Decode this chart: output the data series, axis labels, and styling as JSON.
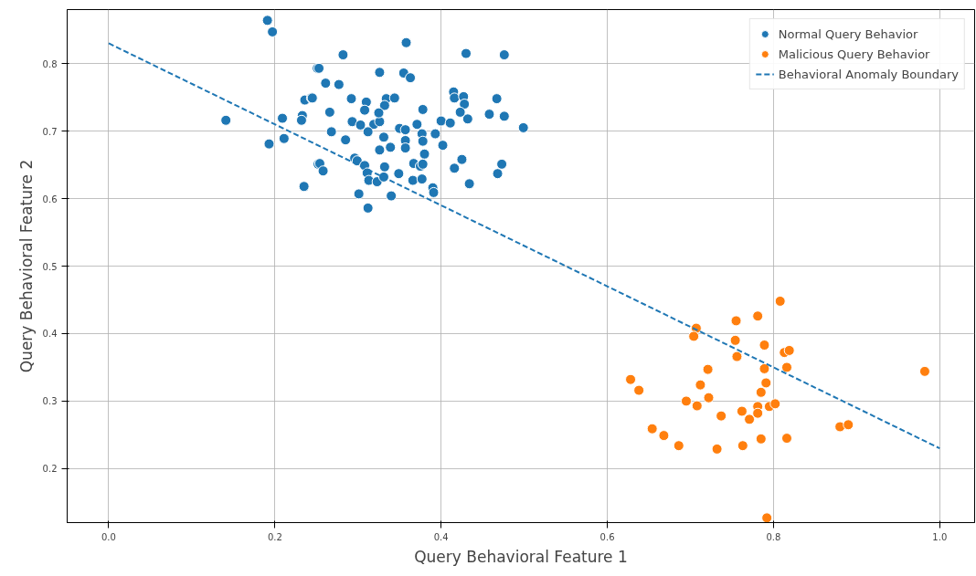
{
  "chart_data": {
    "type": "scatter",
    "xlabel": "Query Behavioral Feature 1",
    "ylabel": "Query Behavioral Feature 2",
    "xlim": [
      -0.05,
      1.042
    ],
    "ylim": [
      0.12,
      0.88
    ],
    "xticks": [
      {
        "value": 0,
        "label": "0.0"
      },
      0.2,
      0.4,
      0.6,
      0.8,
      {
        "value": 1,
        "label": "1.0"
      }
    ],
    "yticks": [
      0.2,
      0.3,
      0.4,
      0.5,
      0.6,
      0.7,
      0.8
    ],
    "grid": true,
    "legend": "top right",
    "series": [
      {
        "name": "Normal Query Behavior",
        "marker": "circle",
        "color": "#1f77b4",
        "x": [
          0.191,
          0.197,
          0.251,
          0.236,
          0.244,
          0.233,
          0.232,
          0.209,
          0.141,
          0.211,
          0.193,
          0.252,
          0.235,
          0.358,
          0.282,
          0.43,
          0.476,
          0.253,
          0.326,
          0.355,
          0.363,
          0.261,
          0.277,
          0.245,
          0.292,
          0.31,
          0.334,
          0.344,
          0.415,
          0.416,
          0.427,
          0.428,
          0.467,
          0.266,
          0.332,
          0.308,
          0.378,
          0.423,
          0.432,
          0.458,
          0.476,
          0.293,
          0.303,
          0.319,
          0.326,
          0.325,
          0.371,
          0.4,
          0.411,
          0.268,
          0.285,
          0.312,
          0.331,
          0.35,
          0.357,
          0.377,
          0.378,
          0.393,
          0.357,
          0.402,
          0.326,
          0.339,
          0.357,
          0.38,
          0.254,
          0.258,
          0.296,
          0.299,
          0.308,
          0.332,
          0.367,
          0.375,
          0.378,
          0.425,
          0.416,
          0.473,
          0.468,
          0.311,
          0.313,
          0.323,
          0.331,
          0.349,
          0.366,
          0.377,
          0.39,
          0.391,
          0.434,
          0.301,
          0.34,
          0.312,
          0.499
        ],
        "values": [
          0.864,
          0.847,
          0.793,
          0.746,
          0.749,
          0.723,
          0.716,
          0.719,
          0.716,
          0.689,
          0.681,
          0.651,
          0.618,
          0.831,
          0.813,
          0.815,
          0.813,
          0.793,
          0.787,
          0.786,
          0.779,
          0.771,
          0.769,
          0.749,
          0.748,
          0.743,
          0.748,
          0.749,
          0.758,
          0.749,
          0.751,
          0.74,
          0.748,
          0.728,
          0.738,
          0.731,
          0.732,
          0.728,
          0.718,
          0.725,
          0.722,
          0.714,
          0.709,
          0.71,
          0.714,
          0.727,
          0.71,
          0.715,
          0.712,
          0.699,
          0.687,
          0.699,
          0.691,
          0.704,
          0.702,
          0.696,
          0.685,
          0.696,
          0.686,
          0.679,
          0.672,
          0.676,
          0.675,
          0.666,
          0.652,
          0.641,
          0.66,
          0.656,
          0.649,
          0.647,
          0.652,
          0.648,
          0.651,
          0.658,
          0.645,
          0.651,
          0.637,
          0.638,
          0.627,
          0.625,
          0.632,
          0.637,
          0.627,
          0.629,
          0.616,
          0.609,
          0.622,
          0.607,
          0.604,
          0.586,
          0.705
        ]
      },
      {
        "name": "Malicious Query Behavior",
        "marker": "circle",
        "color": "#ff7f0e",
        "x": [
          0.808,
          0.781,
          0.755,
          0.707,
          0.704,
          0.754,
          0.789,
          0.813,
          0.819,
          0.756,
          0.789,
          0.816,
          0.982,
          0.721,
          0.628,
          0.638,
          0.712,
          0.791,
          0.785,
          0.722,
          0.695,
          0.708,
          0.762,
          0.781,
          0.781,
          0.795,
          0.802,
          0.737,
          0.771,
          0.654,
          0.668,
          0.686,
          0.732,
          0.763,
          0.785,
          0.816,
          0.88,
          0.89,
          0.792
        ],
        "values": [
          0.448,
          0.426,
          0.419,
          0.408,
          0.396,
          0.39,
          0.383,
          0.372,
          0.375,
          0.366,
          0.348,
          0.35,
          0.344,
          0.347,
          0.332,
          0.316,
          0.324,
          0.327,
          0.313,
          0.305,
          0.3,
          0.293,
          0.285,
          0.292,
          0.282,
          0.292,
          0.296,
          0.278,
          0.273,
          0.259,
          0.249,
          0.234,
          0.229,
          0.234,
          0.244,
          0.245,
          0.262,
          0.265,
          0.127
        ]
      },
      {
        "name": "Behavioral Anomaly Boundary",
        "type": "line",
        "marker": "none",
        "line_style": "dashed",
        "color": "#1f77b4",
        "x": [
          0,
          1
        ],
        "values": [
          0.83,
          0.23
        ]
      }
    ]
  }
}
